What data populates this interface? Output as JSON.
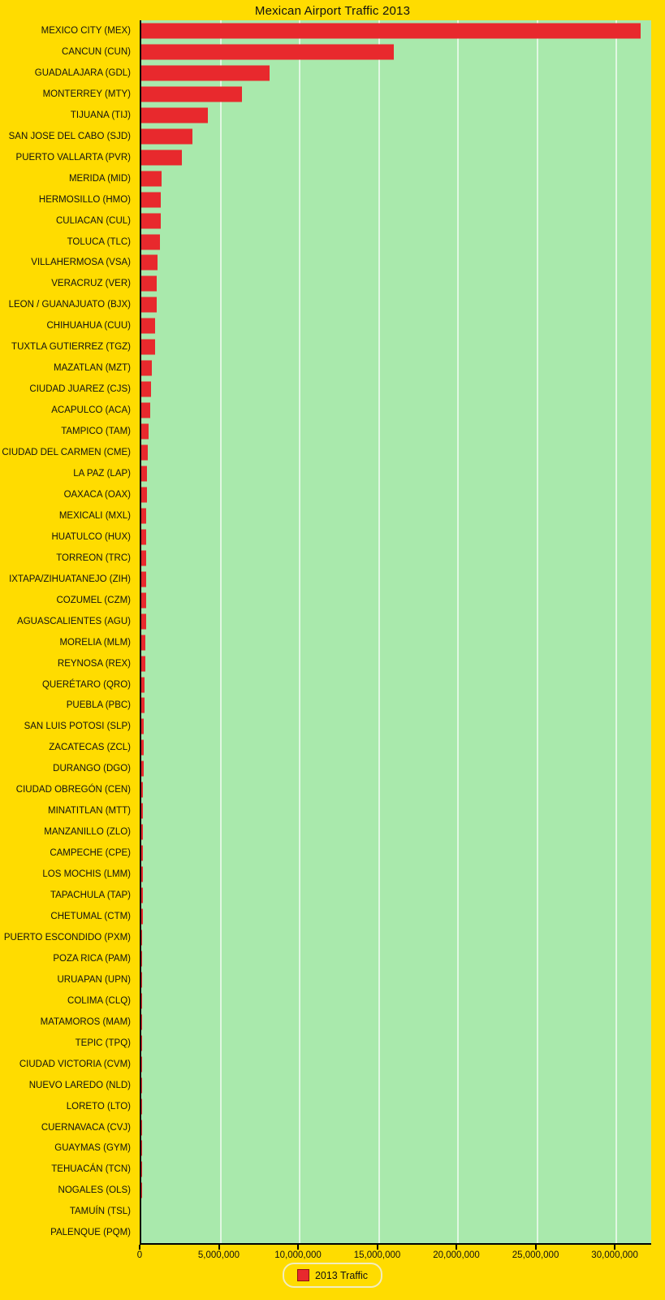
{
  "title": "Mexican Airport Traffic 2013",
  "legend": {
    "label": "2013 Traffic",
    "swatch_color": "#E8292D"
  },
  "colors": {
    "background": "#FFDC00",
    "plot_background": "#A9E9AC",
    "bar": "#E8292D",
    "axis": "#000000",
    "gridline": "rgba(255,255,255,0.65)",
    "legend_border": "#F1ECC0",
    "text": "#111111"
  },
  "chart_data": {
    "type": "bar",
    "orientation": "horizontal",
    "title": "Mexican Airport Traffic 2013",
    "xlabel": "",
    "ylabel": "",
    "xlim": [
      0,
      32200000
    ],
    "xticks": [
      0,
      5000000,
      10000000,
      15000000,
      20000000,
      25000000,
      30000000
    ],
    "xtick_labels": [
      "0",
      "5,000,000",
      "10,000,000",
      "15,000,000",
      "20,000,000",
      "25,000,000",
      "30,000,000"
    ],
    "grid": true,
    "legend_position": "bottom",
    "series_name": "2013 Traffic",
    "categories": [
      "MEXICO CITY (MEX)",
      "CANCUN (CUN)",
      "GUADALAJARA (GDL)",
      "MONTERREY (MTY)",
      "TIJUANA (TIJ)",
      "SAN JOSE DEL CABO (SJD)",
      "PUERTO VALLARTA (PVR)",
      "MERIDA (MID)",
      "HERMOSILLO (HMO)",
      "CULIACAN (CUL)",
      "TOLUCA (TLC)",
      "VILLAHERMOSA (VSA)",
      "VERACRUZ (VER)",
      "LEON / GUANAJUATO (BJX)",
      "CHIHUAHUA (CUU)",
      "TUXTLA GUTIERREZ (TGZ)",
      "MAZATLAN (MZT)",
      "CIUDAD JUAREZ (CJS)",
      "ACAPULCO (ACA)",
      "TAMPICO (TAM)",
      "CIUDAD DEL CARMEN (CME)",
      "LA PAZ (LAP)",
      "OAXACA (OAX)",
      "MEXICALI (MXL)",
      "HUATULCO (HUX)",
      "TORREON (TRC)",
      "IXTAPA/ZIHUATANEJO (ZIH)",
      "COZUMEL (CZM)",
      "AGUASCALIENTES (AGU)",
      "MORELIA (MLM)",
      "REYNOSA (REX)",
      "QUERÉTARO (QRO)",
      "PUEBLA (PBC)",
      "SAN LUIS POTOSI (SLP)",
      "ZACATECAS (ZCL)",
      "DURANGO (DGO)",
      "CIUDAD OBREGÓN (CEN)",
      "MINATITLAN (MTT)",
      "MANZANILLO (ZLO)",
      "CAMPECHE (CPE)",
      "LOS MOCHIS (LMM)",
      "TAPACHULA (TAP)",
      "CHETUMAL (CTM)",
      "PUERTO ESCONDIDO (PXM)",
      "POZA RICA (PAM)",
      "URUAPAN (UPN)",
      "COLIMA (CLQ)",
      "MATAMOROS (MAM)",
      "TEPIC (TPQ)",
      "CIUDAD VICTORIA (CVM)",
      "NUEVO LAREDO (NLD)",
      "LORETO (LTO)",
      "CUERNAVACA (CVJ)",
      "GUAYMAS (GYM)",
      "TEHUACÁN (TCN)",
      "NOGALES (OLS)",
      "TAMUÍN (TSL)",
      "PALENQUE (PQM)"
    ],
    "values": [
      31534638,
      15962162,
      8090000,
      6350000,
      4200000,
      3210000,
      2560000,
      1270000,
      1230000,
      1220000,
      1170000,
      1000000,
      970000,
      950000,
      890000,
      860000,
      670000,
      630000,
      580000,
      480000,
      420000,
      345000,
      335000,
      330000,
      320000,
      310000,
      300000,
      295000,
      285000,
      275000,
      240000,
      215000,
      190000,
      175000,
      150000,
      140000,
      120000,
      110000,
      105000,
      95000,
      90000,
      85000,
      80000,
      70000,
      60000,
      50000,
      45000,
      40000,
      35000,
      25000,
      20000,
      15000,
      12000,
      8000,
      6000,
      4000,
      2000,
      1000
    ]
  }
}
